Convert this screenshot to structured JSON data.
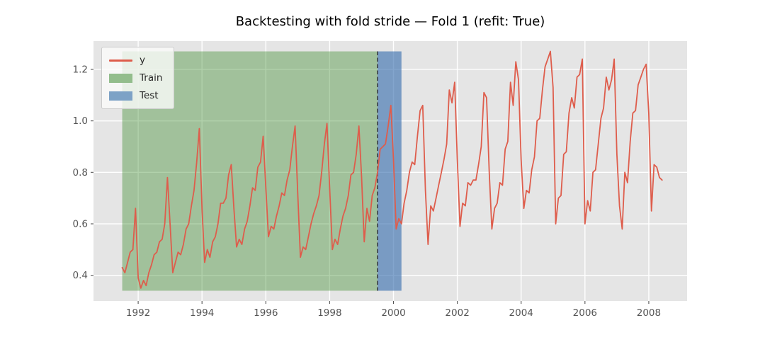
{
  "title": "Backtesting with fold stride — Fold 1 (refit: True)",
  "legend": {
    "position": "upper left",
    "entries": [
      {
        "label": "y",
        "swatch": "line",
        "color": "#de5d4c"
      },
      {
        "label": "Train",
        "swatch": "patch",
        "color": "#93bd8c"
      },
      {
        "label": "Test",
        "swatch": "patch",
        "color": "#7da2c6"
      }
    ]
  },
  "colors": {
    "figure_bg": "#ffffff",
    "axes_bg": "#e5e5e5",
    "grid": "#ffffff",
    "tick": "#555555",
    "tick_label": "#555555",
    "title": "#000000",
    "series_line": "#de5d4c",
    "train_span": "rgba(60,140,45,0.40)",
    "test_span": "rgba(55,110,175,0.62)",
    "fold_boundary": "#3a3e42"
  },
  "chart_data": {
    "type": "line",
    "title": "Backtesting with fold stride — Fold 1 (refit: True)",
    "xlabel": "",
    "ylabel": "",
    "xlim": [
      1990.6,
      2009.2
    ],
    "ylim": [
      0.3,
      1.31
    ],
    "grid": true,
    "legend_position": "upper left",
    "xticks": [
      {
        "v": 1992,
        "label": "1992"
      },
      {
        "v": 1994,
        "label": "1994"
      },
      {
        "v": 1996,
        "label": "1996"
      },
      {
        "v": 1998,
        "label": "1998"
      },
      {
        "v": 2000,
        "label": "2000"
      },
      {
        "v": 2002,
        "label": "2002"
      },
      {
        "v": 2004,
        "label": "2004"
      },
      {
        "v": 2006,
        "label": "2006"
      },
      {
        "v": 2008,
        "label": "2008"
      }
    ],
    "yticks": [
      {
        "v": 0.4,
        "label": "0.4"
      },
      {
        "v": 0.6,
        "label": "0.6"
      },
      {
        "v": 0.8,
        "label": "0.8"
      },
      {
        "v": 1.0,
        "label": "1.0"
      },
      {
        "v": 1.2,
        "label": "1.2"
      }
    ],
    "series": [
      {
        "name": "y",
        "color": "#de5d4c",
        "line_width": 1.8,
        "x_start_label": "1991-07",
        "x_end_label": "2008-06",
        "x0": 1991.5,
        "dx": 0.0833333,
        "values": [
          0.43,
          0.41,
          0.45,
          0.49,
          0.5,
          0.66,
          0.39,
          0.35,
          0.38,
          0.36,
          0.41,
          0.44,
          0.48,
          0.49,
          0.53,
          0.54,
          0.6,
          0.78,
          0.6,
          0.41,
          0.45,
          0.49,
          0.48,
          0.52,
          0.58,
          0.6,
          0.67,
          0.73,
          0.84,
          0.97,
          0.66,
          0.45,
          0.5,
          0.47,
          0.53,
          0.55,
          0.6,
          0.68,
          0.68,
          0.7,
          0.79,
          0.83,
          0.66,
          0.51,
          0.54,
          0.52,
          0.58,
          0.61,
          0.67,
          0.74,
          0.73,
          0.82,
          0.84,
          0.94,
          0.74,
          0.55,
          0.59,
          0.58,
          0.63,
          0.67,
          0.72,
          0.71,
          0.77,
          0.81,
          0.9,
          0.98,
          0.72,
          0.47,
          0.51,
          0.5,
          0.55,
          0.6,
          0.64,
          0.67,
          0.71,
          0.8,
          0.91,
          0.99,
          0.74,
          0.5,
          0.54,
          0.52,
          0.58,
          0.63,
          0.66,
          0.71,
          0.79,
          0.8,
          0.87,
          0.98,
          0.78,
          0.53,
          0.66,
          0.61,
          0.71,
          0.74,
          0.8,
          0.89,
          0.9,
          0.91,
          0.98,
          1.06,
          0.85,
          0.58,
          0.62,
          0.6,
          0.68,
          0.73,
          0.8,
          0.84,
          0.83,
          0.94,
          1.04,
          1.06,
          0.73,
          0.52,
          0.67,
          0.65,
          0.7,
          0.75,
          0.8,
          0.85,
          0.91,
          1.12,
          1.07,
          1.15,
          0.85,
          0.59,
          0.68,
          0.67,
          0.76,
          0.75,
          0.77,
          0.77,
          0.83,
          0.9,
          1.11,
          1.09,
          0.8,
          0.58,
          0.66,
          0.68,
          0.76,
          0.75,
          0.89,
          0.92,
          1.15,
          1.06,
          1.23,
          1.16,
          0.85,
          0.66,
          0.73,
          0.72,
          0.81,
          0.86,
          1.0,
          1.01,
          1.12,
          1.21,
          1.24,
          1.27,
          1.13,
          0.6,
          0.7,
          0.71,
          0.87,
          0.88,
          1.03,
          1.09,
          1.05,
          1.17,
          1.18,
          1.24,
          0.6,
          0.69,
          0.65,
          0.8,
          0.81,
          0.91,
          1.01,
          1.05,
          1.17,
          1.12,
          1.16,
          1.24,
          0.87,
          0.67,
          0.58,
          0.8,
          0.76,
          0.92,
          1.03,
          1.04,
          1.14,
          1.17,
          1.2,
          1.22,
          1.03,
          0.65,
          0.83,
          0.82,
          0.78,
          0.77
        ]
      }
    ],
    "spans": [
      {
        "name": "Train",
        "from": 1991.5,
        "to": 1999.5,
        "ymin": 0.34,
        "ymax": 1.27,
        "color": "rgba(60,140,45,0.40)"
      },
      {
        "name": "Test",
        "from": 1999.5,
        "to": 2000.25,
        "ymin": 0.34,
        "ymax": 1.27,
        "color": "rgba(55,110,175,0.62)"
      }
    ],
    "vline": {
      "x": 1999.5,
      "ymin": 0.34,
      "ymax": 1.27,
      "color": "#3a3e42",
      "style": "dashed"
    }
  }
}
